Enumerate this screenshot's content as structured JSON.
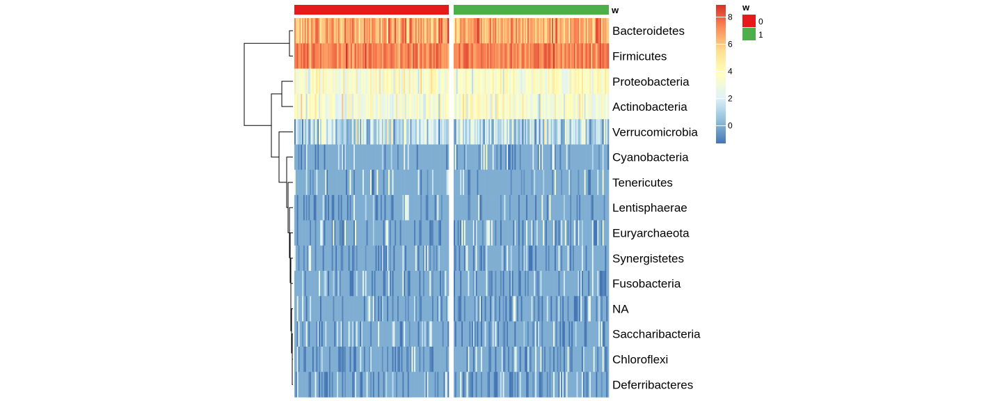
{
  "chart_data": {
    "type": "heatmap",
    "title": "",
    "rows": [
      "Bacteroidetes",
      "Firmicutes",
      "Proteobacteria",
      "Actinobacteria",
      "Verrucomicrobia",
      "Cyanobacteria",
      "Tenericutes",
      "Lentisphaerae",
      "Euryarchaeota",
      "Synergistetes",
      "Fusobacteria",
      "NA",
      "Saccharibacteria",
      "Chloroflexi",
      "Deferribacteres"
    ],
    "column_groups": [
      {
        "annotation": "w",
        "value": "0",
        "color": "#E41A1C",
        "n_columns": 120
      },
      {
        "annotation": "w",
        "value": "1",
        "color": "#4DAF4A",
        "n_columns": 120
      }
    ],
    "row_mean_values": [
      6.6,
      7.4,
      3.6,
      3.4,
      1.4,
      0.9,
      0.9,
      0.5,
      0.4,
      0.25,
      0.1,
      0.1,
      0.1,
      0.1,
      0.1
    ],
    "row_spread": [
      1.0,
      0.6,
      0.9,
      1.0,
      1.3,
      0.9,
      1.0,
      0.7,
      0.7,
      0.5,
      0.3,
      0.3,
      0.3,
      0.3,
      0.3
    ],
    "color_scale": {
      "min": -1.3,
      "max": 8.9,
      "colors": [
        "#4575B4",
        "#91BFDB",
        "#E0F3F8",
        "#FFFFBF",
        "#FEE090",
        "#FC8D59",
        "#D73027"
      ],
      "ticks": [
        0,
        2,
        4,
        6,
        8
      ]
    },
    "legend": {
      "title": "w",
      "entries": [
        {
          "label": "0",
          "color": "#E41A1C"
        },
        {
          "label": "1",
          "color": "#4DAF4A"
        }
      ]
    },
    "annotation_track_label": "w",
    "row_dendrogram": true,
    "column_dendrogram": false,
    "gaps_between_groups": true
  }
}
